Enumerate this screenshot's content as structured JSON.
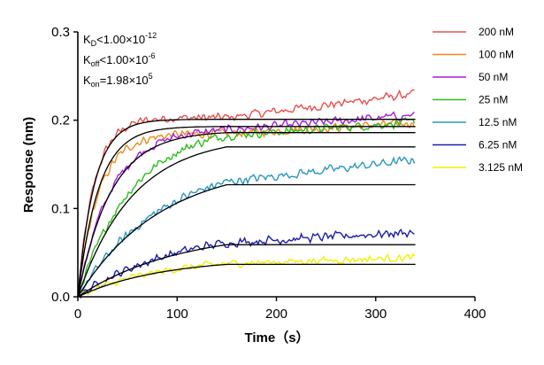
{
  "chart_data": {
    "type": "line",
    "title": "",
    "xlabel": "Time（s）",
    "ylabel": "Response (nm)",
    "xlim": [
      0,
      400
    ],
    "ylim": [
      0,
      0.3
    ],
    "xticks": [
      "0",
      "100",
      "200",
      "300",
      "400"
    ],
    "yticks": [
      "0.0",
      "0.1",
      "0.2",
      "0.3"
    ],
    "grid": false,
    "legend_position": "right",
    "association_end": 150,
    "data_end": 340,
    "annotations": {
      "kd": {
        "sym": "K",
        "sub": "D",
        "rel": "<",
        "val": "1.00×10",
        "exp": "-12"
      },
      "koff": {
        "sym": "K",
        "sub": "off",
        "rel": "<",
        "val": "1.00×10",
        "exp": "-6"
      },
      "kon": {
        "sym": "K",
        "sub": "on",
        "rel": "=",
        "val": "1.98×10",
        "exp": "5"
      }
    },
    "fit_color": "#000000",
    "series": [
      {
        "name": "200 nM",
        "color": "#e8504f",
        "plateau": 0.203,
        "fit_plateau": 0.201,
        "k": 0.06,
        "drift": 0.027,
        "noise": 0.006
      },
      {
        "name": "100 nM",
        "color": "#f08a1c",
        "plateau": 0.185,
        "fit_plateau": 0.193,
        "k": 0.048,
        "drift": 0.012,
        "noise": 0.006
      },
      {
        "name": "50 nM",
        "color": "#a51ddd",
        "plateau": 0.191,
        "fit_plateau": 0.188,
        "k": 0.03,
        "drift": 0.017,
        "noise": 0.006
      },
      {
        "name": "25 nM",
        "color": "#2bbf1c",
        "plateau": 0.196,
        "fit_plateau": 0.182,
        "k": 0.018,
        "drift": 0.015,
        "noise": 0.006
      },
      {
        "name": "12.5 nM",
        "color": "#2a96c0",
        "plateau": 0.156,
        "fit_plateau": 0.152,
        "k": 0.012,
        "drift": 0.025,
        "noise": 0.006
      },
      {
        "name": "6.25 nM",
        "color": "#1a1ea8",
        "plateau": 0.079,
        "fit_plateau": 0.076,
        "k": 0.01,
        "drift": 0.012,
        "noise": 0.006
      },
      {
        "name": "3.125 nM",
        "color": "#f2f000",
        "plateau": 0.045,
        "fit_plateau": 0.044,
        "k": 0.012,
        "drift": 0.007,
        "noise": 0.005
      }
    ]
  }
}
